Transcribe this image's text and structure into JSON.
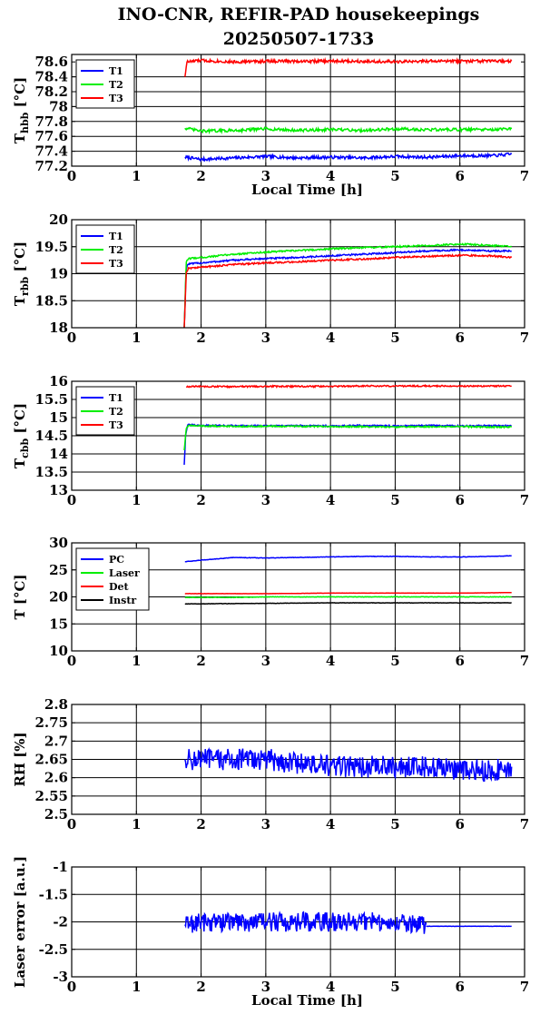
{
  "figure": {
    "title_line1": "INO-CNR, REFIR-PAD housekeepings",
    "title_line2": "20250507-1733"
  },
  "colors": {
    "T1": "#0000ff",
    "T2": "#00ee00",
    "T3": "#ff0000",
    "PC": "#0000ff",
    "Laser": "#00ee00",
    "Det": "#ff0000",
    "Instr": "#000000"
  },
  "chart_data": [
    {
      "type": "line",
      "ylabel_main": "T",
      "ylabel_sub": "hbb",
      "ylabel_unit": " [°C]",
      "xlabel": "Local Time [h]",
      "xlim": [
        0,
        7
      ],
      "ylim": [
        77.2,
        78.7
      ],
      "xticks": [
        "0",
        "1",
        "2",
        "3",
        "4",
        "5",
        "6",
        "7"
      ],
      "yticks": [
        "77.2",
        "77.4",
        "77.6",
        "77.8",
        "78",
        "78.2",
        "78.4",
        "78.6"
      ],
      "ytick_values": [
        77.2,
        77.4,
        77.6,
        77.8,
        78,
        78.2,
        78.4,
        78.6
      ],
      "grid": true,
      "legend_placement": "top-left",
      "series": [
        {
          "name": "T1",
          "color": "#0000ff",
          "noise": 0.02,
          "points": [
            [
              1.75,
              77.32
            ],
            [
              2.0,
              77.29
            ],
            [
              2.5,
              77.31
            ],
            [
              3.0,
              77.33
            ],
            [
              3.5,
              77.31
            ],
            [
              4.0,
              77.32
            ],
            [
              4.5,
              77.31
            ],
            [
              5.0,
              77.33
            ],
            [
              5.5,
              77.32
            ],
            [
              6.0,
              77.34
            ],
            [
              6.5,
              77.34
            ],
            [
              6.8,
              77.36
            ]
          ]
        },
        {
          "name": "T2",
          "color": "#00ee00",
          "noise": 0.02,
          "points": [
            [
              1.75,
              77.71
            ],
            [
              2.0,
              77.67
            ],
            [
              2.5,
              77.68
            ],
            [
              3.0,
              77.7
            ],
            [
              3.5,
              77.68
            ],
            [
              4.0,
              77.69
            ],
            [
              4.5,
              77.68
            ],
            [
              5.0,
              77.7
            ],
            [
              5.5,
              77.69
            ],
            [
              6.0,
              77.69
            ],
            [
              6.5,
              77.69
            ],
            [
              6.8,
              77.7
            ]
          ]
        },
        {
          "name": "T3",
          "color": "#ff0000",
          "noise": 0.02,
          "points": [
            [
              1.75,
              78.4
            ],
            [
              1.78,
              78.6
            ],
            [
              2.0,
              78.62
            ],
            [
              2.5,
              78.6
            ],
            [
              3.0,
              78.61
            ],
            [
              3.5,
              78.61
            ],
            [
              4.0,
              78.61
            ],
            [
              4.5,
              78.61
            ],
            [
              5.0,
              78.6
            ],
            [
              5.5,
              78.61
            ],
            [
              6.0,
              78.61
            ],
            [
              6.5,
              78.61
            ],
            [
              6.8,
              78.61
            ]
          ]
        }
      ]
    },
    {
      "type": "line",
      "ylabel_main": "T",
      "ylabel_sub": "rbb",
      "ylabel_unit": " [°C]",
      "xlabel": "",
      "xlim": [
        0,
        7
      ],
      "ylim": [
        18,
        20
      ],
      "xticks": [
        "0",
        "1",
        "2",
        "3",
        "4",
        "5",
        "6",
        "7"
      ],
      "yticks": [
        "18",
        "18.5",
        "19",
        "19.5",
        "20"
      ],
      "ytick_values": [
        18,
        18.5,
        19,
        19.5,
        20
      ],
      "grid": true,
      "legend_placement": "top-left",
      "series": [
        {
          "name": "T1",
          "color": "#0000ff",
          "noise": 0.015,
          "points": [
            [
              1.74,
              18.0
            ],
            [
              1.77,
              19.1
            ],
            [
              1.8,
              19.18
            ],
            [
              2.0,
              19.2
            ],
            [
              2.5,
              19.25
            ],
            [
              3.0,
              19.28
            ],
            [
              3.5,
              19.3
            ],
            [
              4.0,
              19.33
            ],
            [
              4.5,
              19.36
            ],
            [
              5.0,
              19.39
            ],
            [
              5.5,
              19.42
            ],
            [
              6.0,
              19.44
            ],
            [
              6.5,
              19.42
            ],
            [
              6.8,
              19.42
            ]
          ]
        },
        {
          "name": "T2",
          "color": "#00ee00",
          "noise": 0.015,
          "points": [
            [
              1.74,
              18.0
            ],
            [
              1.77,
              19.2
            ],
            [
              1.8,
              19.28
            ],
            [
              2.0,
              19.3
            ],
            [
              2.5,
              19.36
            ],
            [
              3.0,
              19.4
            ],
            [
              3.5,
              19.43
            ],
            [
              4.0,
              19.46
            ],
            [
              4.5,
              19.48
            ],
            [
              5.0,
              19.5
            ],
            [
              5.5,
              19.52
            ],
            [
              6.0,
              19.55
            ],
            [
              6.5,
              19.52
            ],
            [
              6.8,
              19.5
            ]
          ]
        },
        {
          "name": "T3",
          "color": "#ff0000",
          "noise": 0.015,
          "points": [
            [
              1.74,
              18.0
            ],
            [
              1.77,
              19.0
            ],
            [
              1.8,
              19.1
            ],
            [
              2.0,
              19.12
            ],
            [
              2.5,
              19.17
            ],
            [
              3.0,
              19.2
            ],
            [
              3.5,
              19.22
            ],
            [
              4.0,
              19.25
            ],
            [
              4.5,
              19.27
            ],
            [
              5.0,
              19.3
            ],
            [
              5.5,
              19.32
            ],
            [
              6.0,
              19.34
            ],
            [
              6.5,
              19.33
            ],
            [
              6.8,
              19.3
            ]
          ]
        }
      ]
    },
    {
      "type": "line",
      "ylabel_main": "T",
      "ylabel_sub": "cbb",
      "ylabel_unit": " [°C]",
      "xlabel": "",
      "xlim": [
        0,
        7
      ],
      "ylim": [
        13,
        16
      ],
      "xticks": [
        "0",
        "1",
        "2",
        "3",
        "4",
        "5",
        "6",
        "7"
      ],
      "yticks": [
        "13",
        "13.5",
        "14",
        "14.5",
        "15",
        "15.5",
        "16"
      ],
      "ytick_values": [
        13,
        13.5,
        14,
        14.5,
        15,
        15.5,
        16
      ],
      "grid": true,
      "legend_placement": "top-left",
      "series": [
        {
          "name": "T1",
          "color": "#0000ff",
          "noise": 0.02,
          "points": [
            [
              1.74,
              13.7
            ],
            [
              1.76,
              14.5
            ],
            [
              1.79,
              14.8
            ],
            [
              2.0,
              14.78
            ],
            [
              2.5,
              14.78
            ],
            [
              3.0,
              14.77
            ],
            [
              3.5,
              14.78
            ],
            [
              4.0,
              14.77
            ],
            [
              4.5,
              14.78
            ],
            [
              5.0,
              14.77
            ],
            [
              5.5,
              14.78
            ],
            [
              6.0,
              14.77
            ],
            [
              6.5,
              14.78
            ],
            [
              6.8,
              14.77
            ]
          ]
        },
        {
          "name": "T2",
          "color": "#00ee00",
          "noise": 0.02,
          "points": [
            [
              1.74,
              14.1
            ],
            [
              1.77,
              14.7
            ],
            [
              1.8,
              14.78
            ],
            [
              2.0,
              14.77
            ],
            [
              2.5,
              14.76
            ],
            [
              3.0,
              14.76
            ],
            [
              3.5,
              14.76
            ],
            [
              4.0,
              14.75
            ],
            [
              4.5,
              14.75
            ],
            [
              5.0,
              14.74
            ],
            [
              5.5,
              14.75
            ],
            [
              6.0,
              14.75
            ],
            [
              6.5,
              14.74
            ],
            [
              6.8,
              14.74
            ]
          ]
        },
        {
          "name": "T3",
          "color": "#ff0000",
          "noise": 0.02,
          "points": [
            [
              1.77,
              15.85
            ],
            [
              2.0,
              15.86
            ],
            [
              2.5,
              15.85
            ],
            [
              3.0,
              15.86
            ],
            [
              3.5,
              15.86
            ],
            [
              4.0,
              15.86
            ],
            [
              4.5,
              15.87
            ],
            [
              5.0,
              15.87
            ],
            [
              5.5,
              15.87
            ],
            [
              6.0,
              15.87
            ],
            [
              6.5,
              15.87
            ],
            [
              6.8,
              15.87
            ]
          ]
        }
      ]
    },
    {
      "type": "line",
      "ylabel_main": "T [°C]",
      "ylabel_sub": "",
      "ylabel_unit": "",
      "xlabel": "",
      "xlim": [
        0,
        7
      ],
      "ylim": [
        10,
        30
      ],
      "xticks": [
        "0",
        "1",
        "2",
        "3",
        "4",
        "5",
        "6",
        "7"
      ],
      "yticks": [
        "10",
        "15",
        "20",
        "25",
        "30"
      ],
      "ytick_values": [
        10,
        15,
        20,
        25,
        30
      ],
      "grid": true,
      "legend_placement": "top-left",
      "series": [
        {
          "name": "PC",
          "color": "#0000ff",
          "noise": 0.04,
          "points": [
            [
              1.75,
              26.5
            ],
            [
              2.0,
              26.8
            ],
            [
              2.5,
              27.3
            ],
            [
              3.0,
              27.2
            ],
            [
              3.5,
              27.3
            ],
            [
              4.0,
              27.4
            ],
            [
              4.5,
              27.5
            ],
            [
              5.0,
              27.5
            ],
            [
              5.5,
              27.4
            ],
            [
              6.0,
              27.4
            ],
            [
              6.5,
              27.5
            ],
            [
              6.8,
              27.6
            ]
          ]
        },
        {
          "name": "Laser",
          "color": "#00ee00",
          "noise": 0.04,
          "points": [
            [
              1.75,
              19.9
            ],
            [
              2.5,
              19.9
            ],
            [
              3.0,
              20.0
            ],
            [
              4.0,
              20.0
            ],
            [
              5.0,
              20.0
            ],
            [
              6.0,
              20.0
            ],
            [
              6.8,
              20.0
            ]
          ]
        },
        {
          "name": "Det",
          "color": "#ff0000",
          "noise": 0.02,
          "points": [
            [
              1.75,
              20.6
            ],
            [
              3.0,
              20.6
            ],
            [
              4.0,
              20.7
            ],
            [
              5.0,
              20.7
            ],
            [
              6.0,
              20.7
            ],
            [
              6.8,
              20.8
            ]
          ]
        },
        {
          "name": "Instr",
          "color": "#000000",
          "noise": 0.03,
          "points": [
            [
              1.75,
              18.7
            ],
            [
              3.0,
              18.8
            ],
            [
              4.0,
              18.9
            ],
            [
              5.0,
              18.9
            ],
            [
              6.0,
              18.9
            ],
            [
              6.8,
              18.9
            ]
          ]
        }
      ]
    },
    {
      "type": "line",
      "ylabel_main": "RH [%]",
      "ylabel_sub": "",
      "ylabel_unit": "",
      "xlabel": "",
      "xlim": [
        0,
        7
      ],
      "ylim": [
        2.5,
        2.8
      ],
      "xticks": [
        "0",
        "1",
        "2",
        "3",
        "4",
        "5",
        "6",
        "7"
      ],
      "yticks": [
        "2.5",
        "2.55",
        "2.6",
        "2.65",
        "2.7",
        "2.75",
        "2.8"
      ],
      "ytick_values": [
        2.5,
        2.55,
        2.6,
        2.65,
        2.7,
        2.75,
        2.8
      ],
      "grid": true,
      "legend_placement": "none",
      "series": [
        {
          "name": "",
          "color": "#0000ff",
          "noise": 0.03,
          "points": [
            [
              1.75,
              2.65
            ],
            [
              2.0,
              2.65
            ],
            [
              2.5,
              2.65
            ],
            [
              3.0,
              2.65
            ],
            [
              3.5,
              2.64
            ],
            [
              4.0,
              2.63
            ],
            [
              4.5,
              2.63
            ],
            [
              5.0,
              2.63
            ],
            [
              5.5,
              2.63
            ],
            [
              6.0,
              2.62
            ],
            [
              6.5,
              2.62
            ],
            [
              6.8,
              2.63
            ]
          ]
        }
      ]
    },
    {
      "type": "line",
      "ylabel_main": "Laser error [a.u.]",
      "ylabel_sub": "",
      "ylabel_unit": "",
      "xlabel": "Local Time [h]",
      "xlim": [
        0,
        7
      ],
      "ylim": [
        -3,
        -1
      ],
      "xticks": [
        "0",
        "1",
        "2",
        "3",
        "4",
        "5",
        "6",
        "7"
      ],
      "yticks": [
        "-3",
        "-2.5",
        "-2",
        "-1.5",
        "-1"
      ],
      "ytick_values": [
        -3,
        -2.5,
        -2,
        -1.5,
        -1
      ],
      "grid": true,
      "legend_placement": "none",
      "series": [
        {
          "name": "",
          "color": "#0000ff",
          "noise": 0.18,
          "points": [
            [
              1.75,
              -2.05
            ],
            [
              2.0,
              -2.0
            ],
            [
              2.5,
              -2.0
            ],
            [
              3.0,
              -2.0
            ],
            [
              3.5,
              -2.0
            ],
            [
              4.0,
              -2.0
            ],
            [
              4.5,
              -2.0
            ],
            [
              5.0,
              -2.0
            ],
            [
              5.48,
              -2.05
            ]
          ]
        },
        {
          "name": "",
          "color": "#0000ff",
          "noise": 0.003,
          "points": [
            [
              5.48,
              -2.08
            ],
            [
              6.0,
              -2.08
            ],
            [
              6.5,
              -2.08
            ],
            [
              6.8,
              -2.08
            ]
          ]
        }
      ]
    }
  ]
}
